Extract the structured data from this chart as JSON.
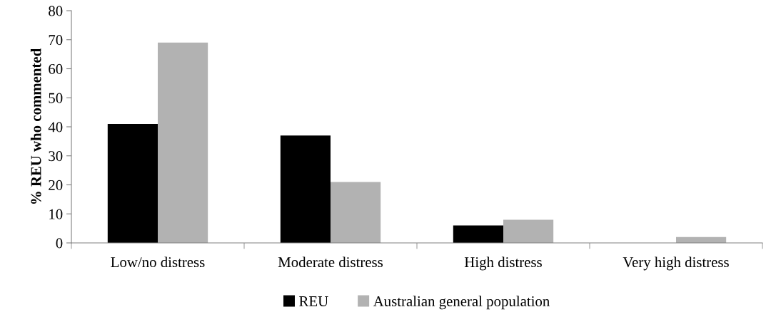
{
  "chart_data": {
    "type": "bar",
    "ylabel": "% REU who commented",
    "categories": [
      "Low/no distress",
      "Moderate distress",
      "High distress",
      "Very high distress"
    ],
    "series": [
      {
        "name": "REU",
        "color": "#000000",
        "values": [
          41,
          37,
          6,
          0
        ]
      },
      {
        "name": "Australian general population",
        "color": "#b2b2b2",
        "values": [
          69,
          21,
          8,
          2
        ]
      }
    ],
    "ylim": [
      0,
      80
    ],
    "yticks": [
      0,
      10,
      20,
      30,
      40,
      50,
      60,
      70,
      80
    ],
    "grid": false,
    "legend": "bottom"
  }
}
